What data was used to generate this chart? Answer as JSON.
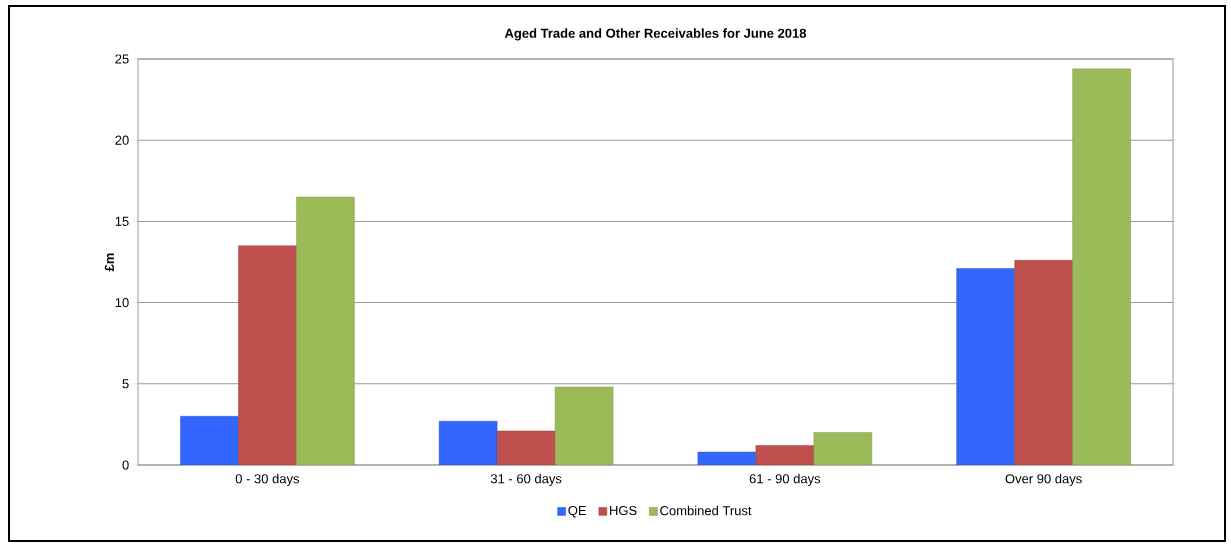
{
  "chart_data": {
    "type": "bar",
    "title": "Aged Trade and Other Receivables for June 2018",
    "ylabel": "£m",
    "categories": [
      "0 - 30 days",
      "31 - 60 days",
      "61 - 90 days",
      "Over 90 days"
    ],
    "series": [
      {
        "name": "QE",
        "color": "#3366ff",
        "values": [
          3.0,
          2.7,
          0.8,
          12.1
        ]
      },
      {
        "name": "HGS",
        "color": "#c0504d",
        "values": [
          13.5,
          2.1,
          1.2,
          12.6
        ]
      },
      {
        "name": "Combined Trust",
        "color": "#9bbb59",
        "values": [
          16.5,
          4.8,
          2.0,
          24.4
        ]
      }
    ],
    "ylim": [
      0,
      25
    ],
    "yticks": [
      0,
      5,
      10,
      15,
      20,
      25
    ],
    "grid": "y",
    "legend": "bottom"
  }
}
